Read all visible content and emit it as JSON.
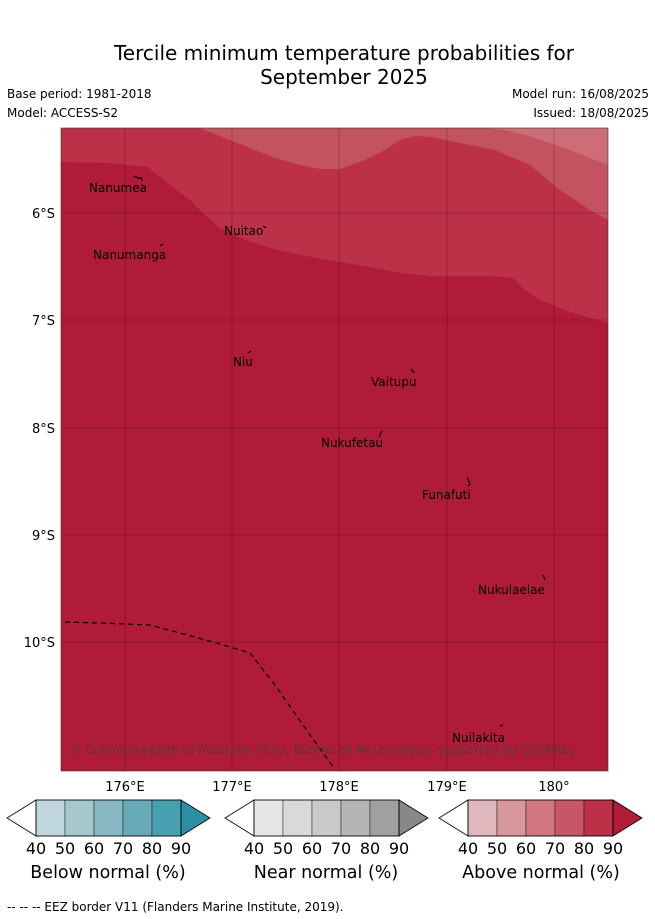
{
  "header": {
    "title_line1": "Tercile minimum temperature probabilities for",
    "title_line2": "September 2025",
    "base_period": "Base period: 1981-2018",
    "model": "Model: ACCESS-S2",
    "model_run": "Model run: 16/08/2025",
    "issued": "Issued: 18/08/2025"
  },
  "map": {
    "lat_labels": [
      "6°S",
      "7°S",
      "8°S",
      "9°S",
      "10°S"
    ],
    "lon_labels": [
      "176°E",
      "177°E",
      "178°E",
      "179°E",
      "180°"
    ],
    "places": [
      {
        "name": "Nanumea"
      },
      {
        "name": "Nuitao"
      },
      {
        "name": "Nanumanga"
      },
      {
        "name": "Niu"
      },
      {
        "name": "Vaitupu"
      },
      {
        "name": "Nukufetau"
      },
      {
        "name": "Funafuti"
      },
      {
        "name": "Nukulaelae"
      },
      {
        "name": "Nuilakita"
      }
    ],
    "copyright": "© Commonwealth of Australia 2025, Bureau of Meteorology, supported by COSPPac",
    "colors": {
      "above_90": "#b01c38",
      "above_80": "#bd3148",
      "above_70": "#c45360",
      "above_60": "#cd6e76",
      "eez_line": "#000000"
    }
  },
  "legends": [
    {
      "title": "Below normal (%)",
      "ticks": [
        "40",
        "50",
        "60",
        "70",
        "80",
        "90"
      ],
      "colors": [
        "#ffffff",
        "#bfd6dc",
        "#a5c8ce",
        "#88b8c3",
        "#69aab8",
        "#46a0b0",
        "#2e8fa4"
      ]
    },
    {
      "title": "Near normal (%)",
      "ticks": [
        "40",
        "50",
        "60",
        "70",
        "80",
        "90"
      ],
      "colors": [
        "#ffffff",
        "#e6e6e6",
        "#d9d9d9",
        "#c9c9c9",
        "#b5b5b5",
        "#a0a0a0",
        "#888888"
      ]
    },
    {
      "title": "Above normal (%)",
      "ticks": [
        "40",
        "50",
        "60",
        "70",
        "80",
        "90"
      ],
      "colors": [
        "#ffffff",
        "#e1b7be",
        "#d7979f",
        "#d27880",
        "#c75766",
        "#bd3148",
        "#b01c38"
      ]
    }
  ],
  "footer": "--  --  -- EEZ border V11 (Flanders Marine Institute, 2019)."
}
